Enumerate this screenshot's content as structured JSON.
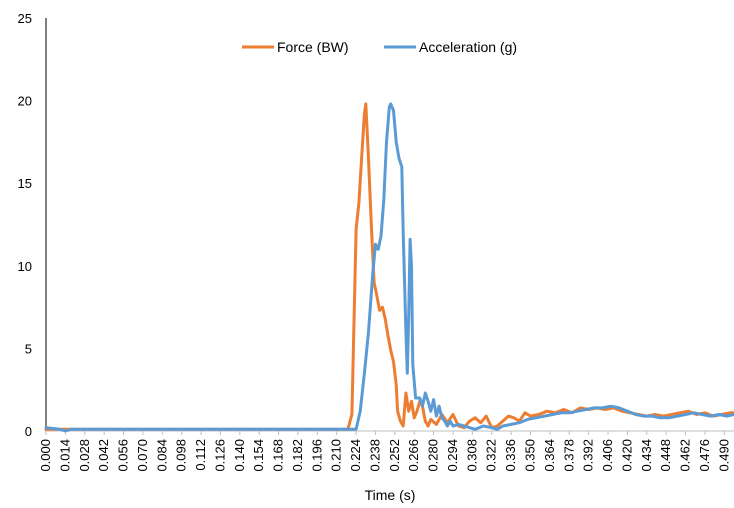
{
  "chart_data": {
    "type": "line",
    "title": "",
    "xlabel": "Time (s)",
    "ylabel": "",
    "xlim": [
      0.0,
      0.497
    ],
    "ylim": [
      0,
      25
    ],
    "yticks": [
      "0",
      "5",
      "10",
      "15",
      "20",
      "25"
    ],
    "xticks": [
      "0.000",
      "0.014",
      "0.028",
      "0.042",
      "0.056",
      "0.070",
      "0.084",
      "0.098",
      "0.112",
      "0.126",
      "0.140",
      "0.154",
      "0.168",
      "0.182",
      "0.196",
      "0.210",
      "0.224",
      "0.238",
      "0.252",
      "0.266",
      "0.280",
      "0.294",
      "0.308",
      "0.322",
      "0.336",
      "0.350",
      "0.364",
      "0.378",
      "0.392",
      "0.406",
      "0.420",
      "0.434",
      "0.448",
      "0.462",
      "0.476",
      "0.490"
    ],
    "grid": false,
    "legend_position": "top-center",
    "series": [
      {
        "name": "Force (BW)",
        "color": "#ED7D31",
        "points": [
          [
            0.0,
            0.1
          ],
          [
            0.218,
            0.1
          ],
          [
            0.221,
            1.0
          ],
          [
            0.224,
            12.2
          ],
          [
            0.226,
            13.8
          ],
          [
            0.228,
            16.5
          ],
          [
            0.23,
            19.2
          ],
          [
            0.231,
            19.8
          ],
          [
            0.233,
            16.5
          ],
          [
            0.235,
            12.5
          ],
          [
            0.237,
            9.0
          ],
          [
            0.239,
            8.2
          ],
          [
            0.241,
            7.3
          ],
          [
            0.243,
            7.5
          ],
          [
            0.245,
            6.8
          ],
          [
            0.247,
            5.8
          ],
          [
            0.249,
            4.9
          ],
          [
            0.251,
            4.2
          ],
          [
            0.253,
            2.8
          ],
          [
            0.254,
            1.2
          ],
          [
            0.256,
            0.6
          ],
          [
            0.258,
            0.3
          ],
          [
            0.26,
            2.3
          ],
          [
            0.262,
            1.2
          ],
          [
            0.264,
            1.8
          ],
          [
            0.266,
            0.8
          ],
          [
            0.268,
            1.2
          ],
          [
            0.27,
            1.8
          ],
          [
            0.272,
            1.5
          ],
          [
            0.274,
            0.6
          ],
          [
            0.276,
            0.3
          ],
          [
            0.278,
            0.7
          ],
          [
            0.282,
            0.4
          ],
          [
            0.286,
            1.0
          ],
          [
            0.29,
            0.5
          ],
          [
            0.294,
            1.0
          ],
          [
            0.298,
            0.3
          ],
          [
            0.302,
            0.2
          ],
          [
            0.306,
            0.6
          ],
          [
            0.31,
            0.8
          ],
          [
            0.314,
            0.5
          ],
          [
            0.318,
            0.9
          ],
          [
            0.322,
            0.2
          ],
          [
            0.326,
            0.3
          ],
          [
            0.33,
            0.6
          ],
          [
            0.334,
            0.9
          ],
          [
            0.338,
            0.8
          ],
          [
            0.342,
            0.6
          ],
          [
            0.346,
            1.1
          ],
          [
            0.35,
            0.9
          ],
          [
            0.356,
            1.0
          ],
          [
            0.362,
            1.2
          ],
          [
            0.368,
            1.1
          ],
          [
            0.374,
            1.3
          ],
          [
            0.38,
            1.1
          ],
          [
            0.386,
            1.4
          ],
          [
            0.392,
            1.3
          ],
          [
            0.398,
            1.4
          ],
          [
            0.404,
            1.3
          ],
          [
            0.41,
            1.4
          ],
          [
            0.416,
            1.2
          ],
          [
            0.422,
            1.1
          ],
          [
            0.428,
            1.0
          ],
          [
            0.434,
            0.9
          ],
          [
            0.44,
            1.0
          ],
          [
            0.446,
            0.9
          ],
          [
            0.452,
            1.0
          ],
          [
            0.458,
            1.1
          ],
          [
            0.464,
            1.2
          ],
          [
            0.47,
            1.0
          ],
          [
            0.476,
            1.1
          ],
          [
            0.482,
            0.9
          ],
          [
            0.488,
            1.0
          ],
          [
            0.494,
            1.1
          ],
          [
            0.497,
            1.1
          ]
        ]
      },
      {
        "name": "Acceleration (g)",
        "color": "#5B9BD5",
        "points": [
          [
            0.0,
            0.2
          ],
          [
            0.01,
            0.1
          ],
          [
            0.014,
            0.0
          ],
          [
            0.018,
            0.1
          ],
          [
            0.218,
            0.1
          ],
          [
            0.224,
            0.1
          ],
          [
            0.227,
            1.2
          ],
          [
            0.23,
            3.5
          ],
          [
            0.233,
            6.0
          ],
          [
            0.236,
            9.5
          ],
          [
            0.238,
            11.3
          ],
          [
            0.24,
            11.0
          ],
          [
            0.242,
            11.8
          ],
          [
            0.244,
            14.0
          ],
          [
            0.246,
            17.5
          ],
          [
            0.248,
            19.6
          ],
          [
            0.249,
            19.8
          ],
          [
            0.251,
            19.4
          ],
          [
            0.253,
            17.5
          ],
          [
            0.255,
            16.5
          ],
          [
            0.257,
            16.0
          ],
          [
            0.258,
            12.0
          ],
          [
            0.26,
            6.0
          ],
          [
            0.261,
            3.5
          ],
          [
            0.262,
            7.0
          ],
          [
            0.263,
            11.6
          ],
          [
            0.264,
            10.0
          ],
          [
            0.265,
            4.0
          ],
          [
            0.267,
            2.0
          ],
          [
            0.27,
            2.0
          ],
          [
            0.272,
            1.5
          ],
          [
            0.274,
            2.3
          ],
          [
            0.276,
            1.8
          ],
          [
            0.278,
            1.2
          ],
          [
            0.28,
            1.9
          ],
          [
            0.282,
            0.9
          ],
          [
            0.284,
            1.5
          ],
          [
            0.286,
            0.8
          ],
          [
            0.288,
            0.6
          ],
          [
            0.29,
            0.3
          ],
          [
            0.292,
            0.6
          ],
          [
            0.294,
            0.3
          ],
          [
            0.298,
            0.4
          ],
          [
            0.302,
            0.3
          ],
          [
            0.306,
            0.2
          ],
          [
            0.31,
            0.1
          ],
          [
            0.316,
            0.3
          ],
          [
            0.322,
            0.2
          ],
          [
            0.326,
            0.1
          ],
          [
            0.33,
            0.3
          ],
          [
            0.336,
            0.4
          ],
          [
            0.342,
            0.5
          ],
          [
            0.348,
            0.7
          ],
          [
            0.354,
            0.8
          ],
          [
            0.36,
            0.9
          ],
          [
            0.366,
            1.0
          ],
          [
            0.372,
            1.1
          ],
          [
            0.378,
            1.1
          ],
          [
            0.384,
            1.2
          ],
          [
            0.39,
            1.3
          ],
          [
            0.396,
            1.4
          ],
          [
            0.402,
            1.4
          ],
          [
            0.408,
            1.5
          ],
          [
            0.414,
            1.4
          ],
          [
            0.42,
            1.2
          ],
          [
            0.426,
            1.0
          ],
          [
            0.432,
            0.9
          ],
          [
            0.438,
            0.9
          ],
          [
            0.444,
            0.8
          ],
          [
            0.45,
            0.8
          ],
          [
            0.456,
            0.9
          ],
          [
            0.462,
            1.0
          ],
          [
            0.468,
            1.1
          ],
          [
            0.474,
            1.0
          ],
          [
            0.48,
            0.9
          ],
          [
            0.486,
            1.0
          ],
          [
            0.492,
            0.9
          ],
          [
            0.497,
            1.0
          ]
        ]
      }
    ]
  }
}
